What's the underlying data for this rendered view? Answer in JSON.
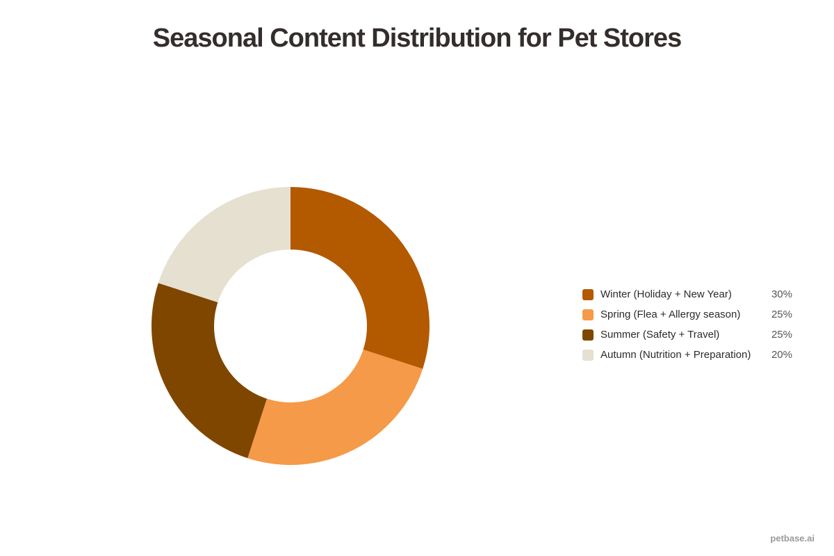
{
  "chart_data": {
    "type": "pie",
    "subtype": "donut",
    "title": "Seasonal Content Distribution for Pet Stores",
    "categories": [
      "Winter (Holiday + New Year)",
      "Spring (Flea + Allergy season)",
      "Summer (Safety + Travel)",
      "Autumn (Nutrition + Preparation)"
    ],
    "values": [
      30,
      25,
      25,
      20
    ],
    "value_labels": [
      "30%",
      "25%",
      "25%",
      "20%"
    ],
    "colors": [
      "#b35900",
      "#f59a48",
      "#7f4600",
      "#e6e0d1"
    ],
    "legend_position": "right",
    "start_angle_deg": 0,
    "direction": "clockwise"
  },
  "header": {
    "title": "Seasonal Content Distribution for Pet Stores"
  },
  "legend": {
    "items": [
      {
        "label": "Winter (Holiday + New Year)",
        "value": "30%",
        "color": "#b35900"
      },
      {
        "label": "Spring (Flea + Allergy season)",
        "value": "25%",
        "color": "#f59a48"
      },
      {
        "label": "Summer (Safety + Travel)",
        "value": "25%",
        "color": "#7f4600"
      },
      {
        "label": "Autumn (Nutrition + Preparation)",
        "value": "20%",
        "color": "#e6e0d1"
      }
    ]
  },
  "footer": {
    "watermark": "petbase.ai"
  }
}
